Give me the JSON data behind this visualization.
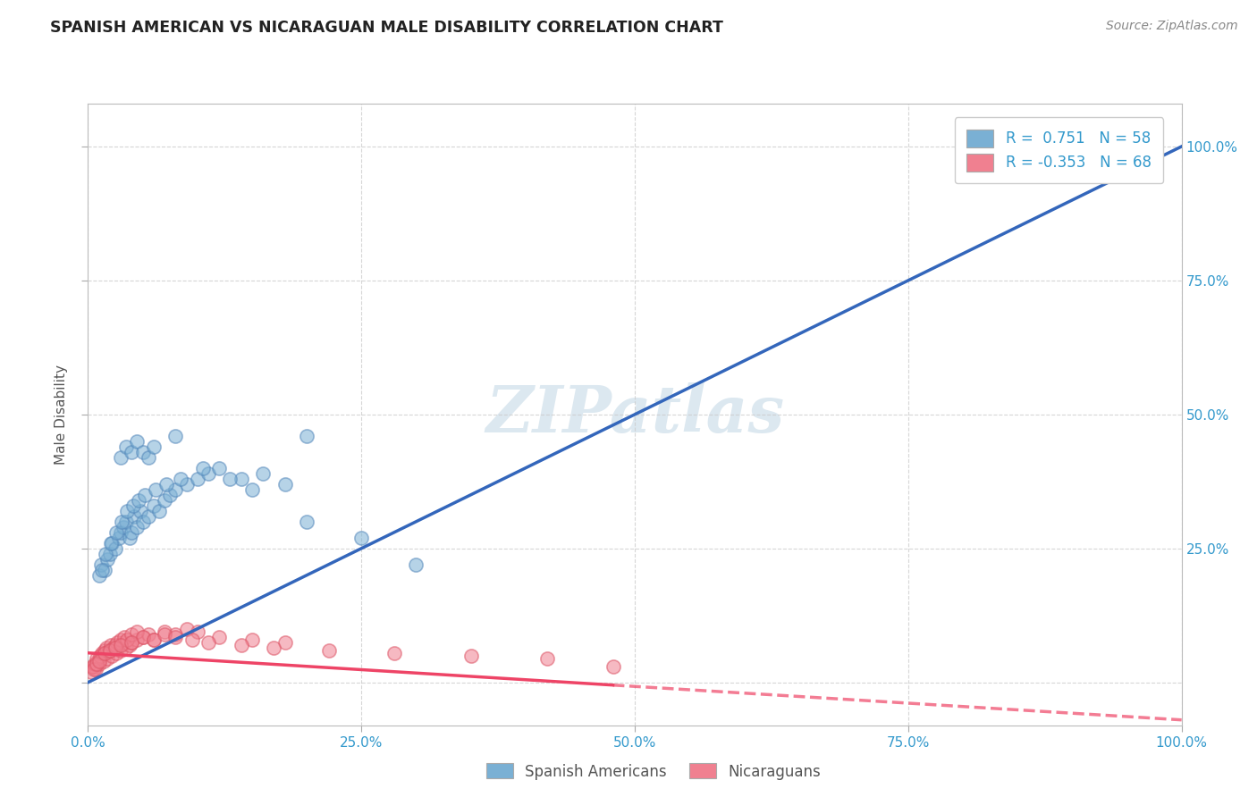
{
  "title": "SPANISH AMERICAN VS NICARAGUAN MALE DISABILITY CORRELATION CHART",
  "source_text": "Source: ZipAtlas.com",
  "ylabel": "Male Disability",
  "xlim": [
    0,
    100
  ],
  "ylim": [
    -8,
    108
  ],
  "xticks": [
    0,
    25,
    50,
    75,
    100
  ],
  "xticklabels": [
    "0.0%",
    "25.0%",
    "50.0%",
    "75.0%",
    "100.0%"
  ],
  "yticks": [
    0,
    25,
    50,
    75,
    100
  ],
  "yticklabels_right": [
    "",
    "25.0%",
    "50.0%",
    "75.0%",
    "100.0%"
  ],
  "background_color": "#ffffff",
  "plot_bg_color": "#ffffff",
  "grid_color": "#cccccc",
  "blue_color": "#7ab0d4",
  "blue_edge_color": "#5588bb",
  "pink_color": "#f08090",
  "pink_edge_color": "#dd5566",
  "blue_line_color": "#3366bb",
  "pink_line_color": "#ee4466",
  "watermark_text": "ZIPatlas",
  "watermark_color": "#dce8f0",
  "legend_R1": "0.751",
  "legend_N1": "58",
  "legend_R2": "-0.353",
  "legend_N2": "68",
  "legend_label1": "Spanish Americans",
  "legend_label2": "Nicaraguans",
  "blue_line_x0": 0,
  "blue_line_y0": 0,
  "blue_line_x1": 100,
  "blue_line_y1": 100,
  "pink_line_x0": 0,
  "pink_line_y0": 5.5,
  "pink_line_x1": 100,
  "pink_line_y1": -7.0,
  "pink_solid_end": 48,
  "blue_scatter_x": [
    1.0,
    1.2,
    1.5,
    1.8,
    2.0,
    2.2,
    2.5,
    2.8,
    3.0,
    3.2,
    3.5,
    3.8,
    4.0,
    4.2,
    4.5,
    4.8,
    5.0,
    5.5,
    6.0,
    6.5,
    7.0,
    7.5,
    8.0,
    9.0,
    10.0,
    11.0,
    12.0,
    14.0,
    16.0,
    18.0,
    1.3,
    1.6,
    2.1,
    2.6,
    3.1,
    3.6,
    4.1,
    4.6,
    5.2,
    6.2,
    7.2,
    8.5,
    10.5,
    13.0,
    15.0,
    20.0,
    25.0,
    30.0,
    3.0,
    3.5,
    4.0,
    4.5,
    5.0,
    5.5,
    6.0,
    8.0,
    20.0,
    97.0
  ],
  "blue_scatter_y": [
    20.0,
    22.0,
    21.0,
    23.0,
    24.0,
    26.0,
    25.0,
    27.0,
    28.0,
    29.0,
    30.0,
    27.0,
    28.0,
    31.0,
    29.0,
    32.0,
    30.0,
    31.0,
    33.0,
    32.0,
    34.0,
    35.0,
    36.0,
    37.0,
    38.0,
    39.0,
    40.0,
    38.0,
    39.0,
    37.0,
    21.0,
    24.0,
    26.0,
    28.0,
    30.0,
    32.0,
    33.0,
    34.0,
    35.0,
    36.0,
    37.0,
    38.0,
    40.0,
    38.0,
    36.0,
    30.0,
    27.0,
    22.0,
    42.0,
    44.0,
    43.0,
    45.0,
    43.0,
    42.0,
    44.0,
    46.0,
    46.0,
    100.0
  ],
  "pink_scatter_x": [
    0.3,
    0.5,
    0.7,
    0.9,
    1.0,
    1.2,
    1.4,
    1.6,
    1.8,
    2.0,
    2.2,
    2.4,
    2.6,
    2.8,
    3.0,
    3.2,
    3.5,
    3.8,
    4.0,
    4.5,
    5.0,
    5.5,
    6.0,
    7.0,
    8.0,
    9.0,
    10.0,
    12.0,
    15.0,
    18.0,
    0.4,
    0.6,
    0.8,
    1.1,
    1.3,
    1.5,
    1.7,
    1.9,
    2.1,
    2.3,
    2.5,
    2.7,
    3.0,
    3.3,
    3.6,
    4.0,
    4.5,
    5.0,
    6.0,
    7.0,
    8.0,
    9.5,
    11.0,
    14.0,
    17.0,
    22.0,
    28.0,
    35.0,
    42.0,
    0.5,
    0.8,
    1.0,
    1.5,
    2.0,
    2.5,
    3.0,
    4.0,
    48.0
  ],
  "pink_scatter_y": [
    2.0,
    3.0,
    2.5,
    4.0,
    3.5,
    5.0,
    4.0,
    5.5,
    4.5,
    6.0,
    5.0,
    6.5,
    5.5,
    7.0,
    6.0,
    7.5,
    6.5,
    7.0,
    7.5,
    8.0,
    8.5,
    9.0,
    8.0,
    9.5,
    9.0,
    10.0,
    9.5,
    8.5,
    8.0,
    7.5,
    3.0,
    3.5,
    4.5,
    5.0,
    5.5,
    6.0,
    6.5,
    6.0,
    7.0,
    6.5,
    7.0,
    7.5,
    8.0,
    8.5,
    8.0,
    9.0,
    9.5,
    8.5,
    8.0,
    9.0,
    8.5,
    8.0,
    7.5,
    7.0,
    6.5,
    6.0,
    5.5,
    5.0,
    4.5,
    2.5,
    3.5,
    4.0,
    5.5,
    6.0,
    6.5,
    7.0,
    7.5,
    3.0
  ]
}
